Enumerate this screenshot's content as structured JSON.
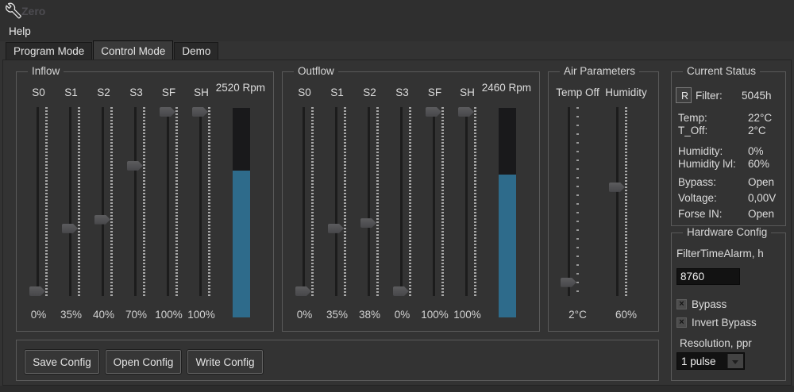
{
  "window": {
    "title": "Zero"
  },
  "menu": {
    "items": [
      "Help"
    ]
  },
  "tabs": [
    {
      "label": "Program Mode",
      "active": false
    },
    {
      "label": "Control Mode",
      "active": true
    },
    {
      "label": "Demo",
      "active": false
    }
  ],
  "inflow": {
    "title": "Inflow",
    "rpm_label": "2520 Rpm",
    "rpm_fill_pct": 70,
    "sliders": [
      {
        "name": "S0",
        "value_label": "0%",
        "pct": 0
      },
      {
        "name": "S1",
        "value_label": "35%",
        "pct": 35
      },
      {
        "name": "S2",
        "value_label": "40%",
        "pct": 40
      },
      {
        "name": "S3",
        "value_label": "70%",
        "pct": 70
      },
      {
        "name": "SF",
        "value_label": "100%",
        "pct": 100
      },
      {
        "name": "SH",
        "value_label": "100%",
        "pct": 100
      }
    ]
  },
  "outflow": {
    "title": "Outflow",
    "rpm_label": "2460 Rpm",
    "rpm_fill_pct": 68,
    "sliders": [
      {
        "name": "S0",
        "value_label": "0%",
        "pct": 0
      },
      {
        "name": "S1",
        "value_label": "35%",
        "pct": 35
      },
      {
        "name": "S2",
        "value_label": "38%",
        "pct": 38
      },
      {
        "name": "S3",
        "value_label": "0%",
        "pct": 0
      },
      {
        "name": "SF",
        "value_label": "100%",
        "pct": 100
      },
      {
        "name": "SH",
        "value_label": "100%",
        "pct": 100
      }
    ]
  },
  "air_parameters": {
    "title": "Air Parameters",
    "sliders": [
      {
        "name": "Temp Off",
        "value_label": "2°C",
        "pct": 5
      },
      {
        "name": "Humidity",
        "value_label": "60%",
        "pct": 58
      }
    ]
  },
  "current_status": {
    "title": "Current Status",
    "reset_button": "R",
    "rows": [
      {
        "label": "Filter:",
        "value": "5045h"
      },
      {
        "label": "Temp:",
        "value": "22°C"
      },
      {
        "label": "T_Off:",
        "value": "2°C"
      },
      {
        "label": "Humidity:",
        "value": "0%"
      },
      {
        "label": "Humidity lvl:",
        "value": "60%"
      },
      {
        "label": "Bypass:",
        "value": "Open"
      },
      {
        "label": "Voltage:",
        "value": "0,00V"
      },
      {
        "label": "Forse IN:",
        "value": "Open"
      }
    ]
  },
  "hardware_config": {
    "title": "Hardware Config",
    "filter_time_label": "FilterTimeAlarm, h",
    "filter_time_value": "8760",
    "checkboxes": [
      {
        "label": "Bypass",
        "mark": "×",
        "checked": true
      },
      {
        "label": "Invert Bypass",
        "mark": "×",
        "checked": true
      }
    ],
    "resolution_label": "Resolution, ppr",
    "resolution_value": "1 pulse"
  },
  "actions": {
    "buttons": [
      "Save Config",
      "Open Config",
      "Write Config"
    ]
  },
  "colors": {
    "accent_fill": "#2e6b8b",
    "background": "#333333"
  }
}
